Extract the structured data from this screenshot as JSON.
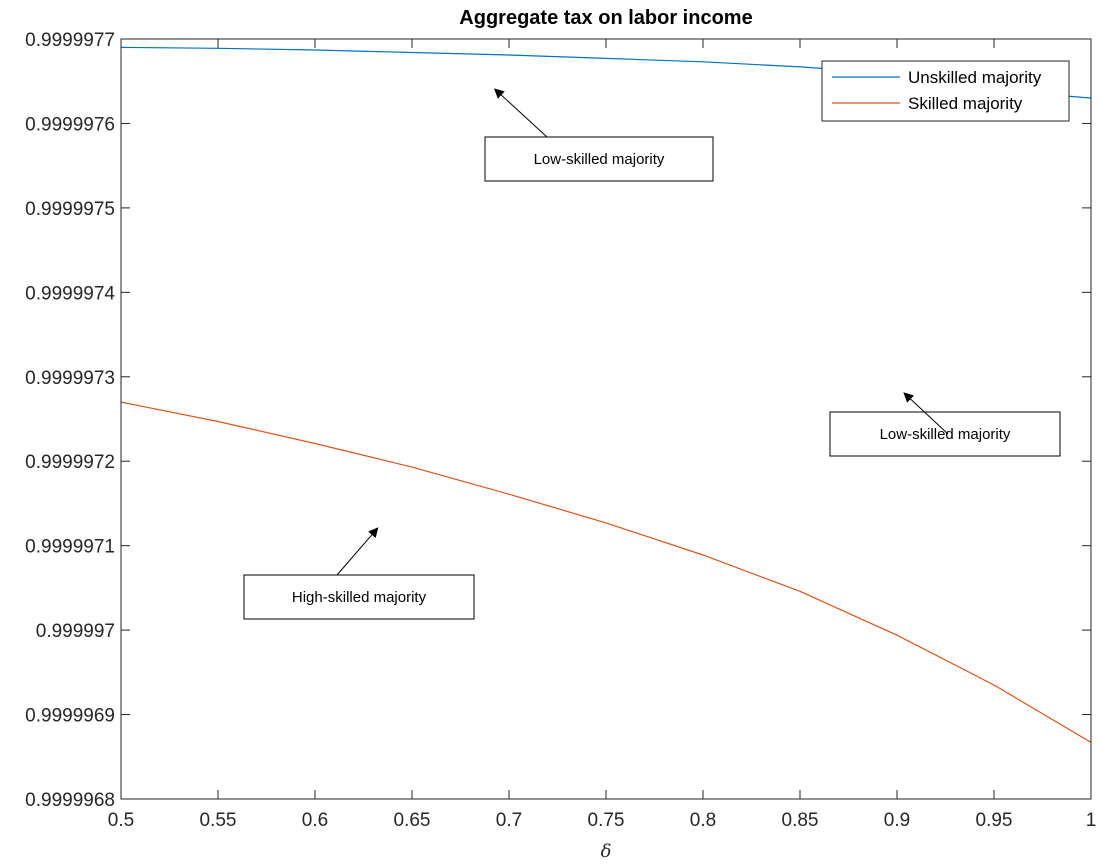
{
  "chart_data": {
    "type": "line",
    "title": "Aggregate tax on labor income",
    "xlabel": "δ",
    "ylabel": "",
    "xlim": [
      0.5,
      1.0
    ],
    "ylim": [
      0.9999968,
      0.9999977
    ],
    "x_ticks": [
      "0.5",
      "0.55",
      "0.6",
      "0.65",
      "0.7",
      "0.75",
      "0.8",
      "0.85",
      "0.9",
      "0.95",
      "1"
    ],
    "y_ticks": [
      "0.9999968",
      "0.9999969",
      "0.999997",
      "0.9999971",
      "0.9999972",
      "0.9999973",
      "0.9999974",
      "0.9999975",
      "0.9999976",
      "0.9999977"
    ],
    "x": [
      0.5,
      0.55,
      0.6,
      0.65,
      0.7,
      0.75,
      0.8,
      0.85,
      0.9,
      0.95,
      1.0
    ],
    "series": [
      {
        "name": "Unskilled majority",
        "color": "#0072BD",
        "values": [
          0.99999769,
          0.999997689,
          0.999997687,
          0.999997684,
          0.999997681,
          0.999997677,
          0.999997673,
          0.999997667,
          0.999997659,
          0.99999764,
          0.99999763
        ]
      },
      {
        "name": "Skilled majority",
        "color": "#D95319",
        "values": [
          0.99999727,
          0.999997247,
          0.999997221,
          0.999997193,
          0.999997161,
          0.999997127,
          0.999997089,
          0.999997046,
          0.999996994,
          0.999996935,
          0.999996867
        ]
      }
    ],
    "grid": false,
    "legend": "top-right",
    "annotations": [
      {
        "text": "Low-skilled majority",
        "arrow_to": [
          0.693,
          0.99999764
        ]
      },
      {
        "text": "Low-skilled majority",
        "arrow_to": [
          0.904,
          0.99999728
        ]
      },
      {
        "text": "High-skilled majority",
        "arrow_to": [
          0.632,
          0.99999712
        ]
      }
    ]
  }
}
